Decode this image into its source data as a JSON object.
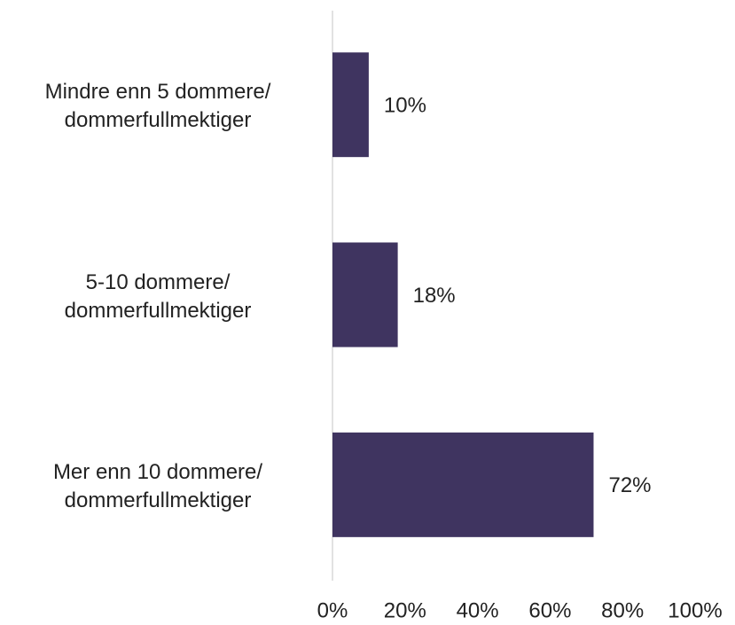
{
  "chart_data": {
    "type": "bar",
    "orientation": "horizontal",
    "categories": [
      "Mindre enn 5 dommere/\ndommerfullmektiger",
      "5-10 dommere/\ndommerfullmektiger",
      "Mer enn 10 dommere/\ndommerfullmektiger"
    ],
    "values": [
      10,
      18,
      72
    ],
    "value_labels": [
      "10%",
      "18%",
      "72%"
    ],
    "color": "#3f3460",
    "xlim": [
      0,
      100
    ],
    "xticks": [
      {
        "value": 0,
        "label": "0%"
      },
      {
        "value": 20,
        "label": "20%"
      },
      {
        "value": 40,
        "label": "40%"
      },
      {
        "value": 60,
        "label": "60%"
      },
      {
        "value": 80,
        "label": "80%"
      },
      {
        "value": 100,
        "label": "100%"
      }
    ]
  }
}
